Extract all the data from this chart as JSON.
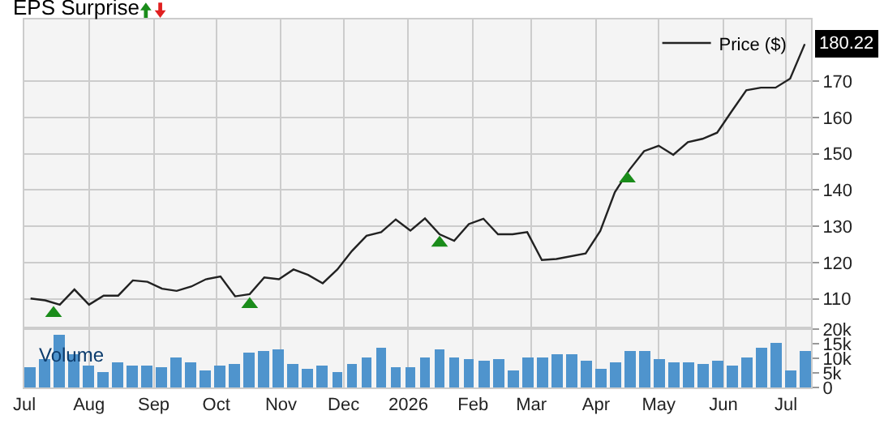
{
  "chart_data": [
    {
      "type": "line",
      "title": "EPS Surprise",
      "series": [
        {
          "name": "Price ($)",
          "color": "#222222",
          "x": [
            "2025-07-04",
            "2025-07-11",
            "2025-07-18",
            "2025-07-25",
            "2025-08-01",
            "2025-08-08",
            "2025-08-15",
            "2025-08-22",
            "2025-08-29",
            "2025-09-05",
            "2025-09-12",
            "2025-09-19",
            "2025-09-26",
            "2025-10-03",
            "2025-10-10",
            "2025-10-17",
            "2025-10-24",
            "2025-10-31",
            "2025-11-07",
            "2025-11-14",
            "2025-11-21",
            "2025-11-28",
            "2025-12-05",
            "2025-12-12",
            "2025-12-19",
            "2025-12-26",
            "2026-01-02",
            "2026-01-09",
            "2026-01-16",
            "2026-01-23",
            "2026-01-30",
            "2026-02-06",
            "2026-02-13",
            "2026-02-20",
            "2026-02-27",
            "2026-03-06",
            "2026-03-13",
            "2026-03-27",
            "2026-04-03",
            "2026-04-10",
            "2026-04-17",
            "2026-04-24",
            "2026-05-01",
            "2026-05-08",
            "2026-05-15",
            "2026-05-22",
            "2026-05-29",
            "2026-06-05",
            "2026-06-12",
            "2026-06-19",
            "2026-06-26",
            "2026-07-03",
            "2026-07-10"
          ],
          "values": [
            110.1,
            109.6,
            108.4,
            112.6,
            108.4,
            110.9,
            110.9,
            115.1,
            114.7,
            112.8,
            112.2,
            113.4,
            115.4,
            116.2,
            110.7,
            111.3,
            115.9,
            115.4,
            118.1,
            116.6,
            114.3,
            118.1,
            123.2,
            127.4,
            128.4,
            131.9,
            128.8,
            132.2,
            127.8,
            126.0,
            130.6,
            132.1,
            127.8,
            127.8,
            128.4,
            120.7,
            121.0,
            122.5,
            128.7,
            139.4,
            145.6,
            150.7,
            152.2,
            149.7,
            153.2,
            154.1,
            155.8,
            161.7,
            167.5,
            168.2,
            168.2,
            170.7,
            180.22
          ],
          "value_labels": [
            null,
            null,
            null,
            null,
            null,
            null,
            null,
            null,
            null,
            null,
            null,
            null,
            null,
            null,
            null,
            null,
            null,
            null,
            null,
            null,
            null,
            null,
            null,
            null,
            null,
            null,
            null,
            null,
            null,
            null,
            null,
            null,
            null,
            null,
            null,
            null,
            null,
            null,
            null,
            null,
            null,
            null,
            null,
            null,
            null,
            null,
            null,
            null,
            null,
            null,
            null,
            null,
            "180.22"
          ]
        },
        {
          "type": "scatter",
          "color": "#1a8c1a",
          "marker": "triangle",
          "x": [
            "2025-07-15",
            "2025-10-17",
            "2026-01-16",
            "2026-04-16"
          ],
          "values": [
            106.0,
            108.5,
            125.4,
            143.1
          ]
        }
      ],
      "xlim": [
        "2025-07-01",
        "2026-07-13"
      ],
      "xticks": [
        {
          "value": "2025-07-01",
          "label": null
        },
        {
          "value": "2025-08-01",
          "label": null
        },
        {
          "value": "2025-09-01",
          "label": null
        },
        {
          "value": "2025-10-01",
          "label": null
        },
        {
          "value": "2025-11-01",
          "label": null
        },
        {
          "value": "2025-12-01",
          "label": null
        },
        {
          "value": "2026-01-01",
          "label": null
        },
        {
          "value": "2026-02-01",
          "label": null
        },
        {
          "value": "2026-03-01",
          "label": null
        },
        {
          "value": "2026-04-01",
          "label": null
        },
        {
          "value": "2026-05-01",
          "label": null
        },
        {
          "value": "2026-06-01",
          "label": null
        },
        {
          "value": "2026-07-01",
          "label": null
        }
      ],
      "ylim": [
        102,
        187
      ],
      "yticks": [
        110,
        120,
        130,
        140,
        150,
        160,
        170
      ],
      "grid": true,
      "legend": "top right",
      "tick_labels": "y"
    },
    {
      "type": "bar",
      "ylabel": "Volume",
      "x": [
        "2025-07-04",
        "2025-07-11",
        "2025-07-18",
        "2025-07-25",
        "2025-08-01",
        "2025-08-08",
        "2025-08-15",
        "2025-08-22",
        "2025-08-29",
        "2025-09-05",
        "2025-09-12",
        "2025-09-19",
        "2025-09-26",
        "2025-10-03",
        "2025-10-10",
        "2025-10-17",
        "2025-10-24",
        "2025-10-31",
        "2025-11-07",
        "2025-11-14",
        "2025-11-21",
        "2025-11-28",
        "2025-12-05",
        "2025-12-12",
        "2025-12-19",
        "2025-12-26",
        "2026-01-02",
        "2026-01-09",
        "2026-01-16",
        "2026-01-23",
        "2026-01-30",
        "2026-02-06",
        "2026-02-13",
        "2026-02-20",
        "2026-02-27",
        "2026-03-06",
        "2026-03-13",
        "2026-03-20",
        "2026-03-27",
        "2026-04-03",
        "2026-04-10",
        "2026-04-17",
        "2026-04-24",
        "2026-05-01",
        "2026-05-08",
        "2026-05-15",
        "2026-05-22",
        "2026-05-29",
        "2026-06-05",
        "2026-06-12",
        "2026-06-19",
        "2026-06-26",
        "2026-07-03",
        "2026-07-10"
      ],
      "values": [
        7.1,
        9.7,
        18.1,
        11.6,
        7.9,
        5.6,
        8.6,
        7.7,
        7.7,
        6.9,
        10.3,
        9.0,
        6.0,
        7.5,
        8.2,
        12.0,
        12.9,
        13.5,
        8.2,
        6.5,
        7.5,
        5.6,
        8.0,
        10.5,
        13.6,
        7.1,
        7.1,
        10.5,
        13.5,
        10.7,
        9.7,
        9.3,
        10.1,
        5.8,
        10.7,
        10.7,
        11.8,
        11.8,
        9.3,
        6.5,
        8.8,
        12.5,
        12.5,
        10.1,
        9.0,
        8.8,
        8.2,
        9.3,
        7.5,
        10.7,
        13.6,
        15.3,
        6.0,
        12.5
      ],
      "color": "#4f94cd",
      "xlim": [
        "2025-07-01",
        "2026-07-13"
      ],
      "xticks": [
        {
          "value": "2025-07-01",
          "label": "Jul"
        },
        {
          "value": "2025-08-01",
          "label": "Aug"
        },
        {
          "value": "2025-09-01",
          "label": "Sep"
        },
        {
          "value": "2025-10-01",
          "label": "Oct"
        },
        {
          "value": "2025-11-01",
          "label": "Nov"
        },
        {
          "value": "2025-12-01",
          "label": "Dec"
        },
        {
          "value": "2026-01-01",
          "label": "2026"
        },
        {
          "value": "2026-02-01",
          "label": "Feb"
        },
        {
          "value": "2026-03-01",
          "label": "Mar"
        },
        {
          "value": "2026-04-01",
          "label": "Apr"
        },
        {
          "value": "2026-05-01",
          "label": "May"
        },
        {
          "value": "2026-06-01",
          "label": "Jun"
        },
        {
          "value": "2026-07-01",
          "label": "Jul"
        }
      ],
      "ylim": [
        0,
        20.5
      ],
      "yticks": [
        {
          "value": 0,
          "label": "0"
        },
        {
          "value": 5,
          "label": "5k"
        },
        {
          "value": 10,
          "label": "10k"
        },
        {
          "value": 15,
          "label": "15k"
        },
        {
          "value": 20,
          "label": "20k"
        }
      ],
      "grid": "x"
    }
  ]
}
